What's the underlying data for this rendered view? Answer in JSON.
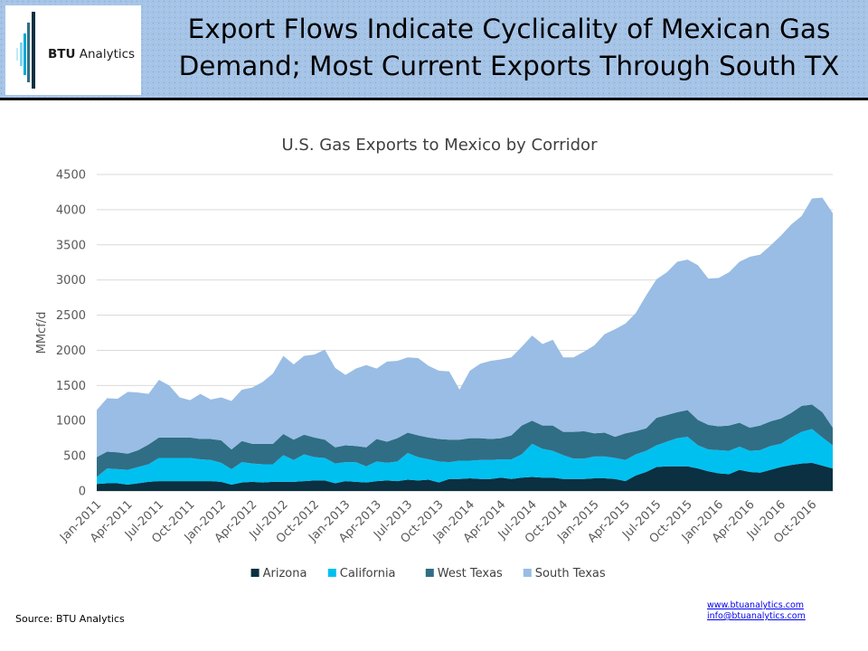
{
  "header": {
    "title_line1": "Export Flows Indicate Cyclicality of Mexican Gas",
    "title_line2": "Demand; Most Current Exports Through South TX",
    "logo_brand": "BTU",
    "logo_suffix": "Analytics"
  },
  "footer": {
    "source": "Source: BTU Analytics",
    "link_web": "www.btuanalytics.com",
    "link_email": "info@btuanalytics.com"
  },
  "colors": {
    "header_bg": "#a6c4e6",
    "arizona": "#0a3041",
    "california": "#00c0f0",
    "west_texas": "#306e85",
    "south_texas": "#99bde4"
  },
  "chart_data": {
    "type": "area",
    "stacked": true,
    "title": "U.S. Gas Exports to Mexico by Corridor",
    "ylabel": "MMcf/d",
    "xlabel": "",
    "ylim": [
      0,
      4500
    ],
    "yticks": [
      0,
      500,
      1000,
      1500,
      2000,
      2500,
      3000,
      3500,
      4000,
      4500
    ],
    "grid": true,
    "legend_position": "bottom",
    "x_start": "Jan-2011",
    "x": [
      "Jan-2011",
      "Feb-2011",
      "Mar-2011",
      "Apr-2011",
      "May-2011",
      "Jun-2011",
      "Jul-2011",
      "Aug-2011",
      "Sep-2011",
      "Oct-2011",
      "Nov-2011",
      "Dec-2011",
      "Jan-2012",
      "Feb-2012",
      "Mar-2012",
      "Apr-2012",
      "May-2012",
      "Jun-2012",
      "Jul-2012",
      "Aug-2012",
      "Sep-2012",
      "Oct-2012",
      "Nov-2012",
      "Dec-2012",
      "Jan-2013",
      "Feb-2013",
      "Mar-2013",
      "Apr-2013",
      "May-2013",
      "Jun-2013",
      "Jul-2013",
      "Aug-2013",
      "Sep-2013",
      "Oct-2013",
      "Nov-2013",
      "Dec-2013",
      "Jan-2014",
      "Feb-2014",
      "Mar-2014",
      "Apr-2014",
      "May-2014",
      "Jun-2014",
      "Jul-2014",
      "Aug-2014",
      "Sep-2014",
      "Oct-2014",
      "Nov-2014",
      "Dec-2014",
      "Jan-2015",
      "Feb-2015",
      "Mar-2015",
      "Apr-2015",
      "May-2015",
      "Jun-2015",
      "Jul-2015",
      "Aug-2015",
      "Sep-2015",
      "Oct-2015",
      "Nov-2015",
      "Dec-2015",
      "Jan-2016",
      "Feb-2016",
      "Mar-2016",
      "Apr-2016",
      "May-2016",
      "Jun-2016",
      "Jul-2016",
      "Aug-2016",
      "Sep-2016",
      "Oct-2016",
      "Nov-2016",
      "Dec-2016"
    ],
    "xtick_labels": [
      "Jan-2011",
      "Apr-2011",
      "Jul-2011",
      "Oct-2011",
      "Jan-2012",
      "Apr-2012",
      "Jul-2012",
      "Oct-2012",
      "Jan-2013",
      "Apr-2013",
      "Jul-2013",
      "Oct-2013",
      "Jan-2014",
      "Apr-2014",
      "Jul-2014",
      "Oct-2014",
      "Jan-2015",
      "Apr-2015",
      "Jul-2015",
      "Oct-2015",
      "Jan-2016",
      "Apr-2016",
      "Jul-2016",
      "Oct-2016"
    ],
    "series": [
      {
        "name": "Arizona",
        "color": "#0a3041",
        "values": [
          100,
          110,
          110,
          90,
          110,
          130,
          140,
          140,
          140,
          140,
          140,
          140,
          130,
          90,
          120,
          130,
          120,
          130,
          130,
          130,
          140,
          150,
          150,
          110,
          140,
          130,
          120,
          140,
          150,
          140,
          160,
          150,
          160,
          120,
          170,
          170,
          180,
          170,
          170,
          190,
          170,
          190,
          200,
          190,
          190,
          170,
          170,
          170,
          180,
          180,
          170,
          140,
          220,
          270,
          340,
          350,
          350,
          350,
          320,
          280,
          250,
          240,
          300,
          270,
          260,
          300,
          340,
          370,
          390,
          400,
          360,
          320
        ]
      },
      {
        "name": "California",
        "color": "#00c0f0",
        "values": [
          100,
          210,
          200,
          210,
          230,
          250,
          330,
          330,
          330,
          330,
          310,
          300,
          270,
          220,
          290,
          260,
          260,
          250,
          380,
          310,
          380,
          330,
          320,
          280,
          270,
          280,
          230,
          280,
          250,
          280,
          380,
          330,
          290,
          300,
          240,
          260,
          250,
          270,
          270,
          260,
          280,
          330,
          470,
          410,
          380,
          340,
          290,
          290,
          310,
          310,
          300,
          300,
          300,
          300,
          310,
          350,
          400,
          420,
          330,
          310,
          330,
          330,
          330,
          300,
          320,
          340,
          330,
          390,
          450,
          480,
          400,
          330
        ]
      },
      {
        "name": "West Texas",
        "color": "#306e85",
        "values": [
          280,
          240,
          240,
          230,
          240,
          280,
          290,
          290,
          290,
          290,
          290,
          300,
          320,
          280,
          300,
          280,
          290,
          290,
          300,
          290,
          280,
          280,
          260,
          230,
          240,
          230,
          270,
          320,
          300,
          330,
          290,
          310,
          310,
          320,
          320,
          300,
          320,
          310,
          300,
          300,
          340,
          410,
          330,
          330,
          360,
          330,
          380,
          390,
          330,
          340,
          300,
          380,
          330,
          320,
          390,
          380,
          370,
          380,
          360,
          350,
          340,
          360,
          340,
          330,
          350,
          350,
          360,
          350,
          370,
          350,
          360,
          250
        ]
      },
      {
        "name": "South Texas",
        "color": "#99bde4",
        "values": [
          670,
          760,
          760,
          880,
          820,
          720,
          820,
          740,
          570,
          530,
          640,
          560,
          610,
          690,
          730,
          800,
          880,
          1000,
          1110,
          1070,
          1120,
          1180,
          1280,
          1130,
          1000,
          1100,
          1170,
          1000,
          1140,
          1100,
          1070,
          1100,
          1020,
          970,
          970,
          710,
          960,
          1060,
          1110,
          1120,
          1110,
          1120,
          1210,
          1160,
          1220,
          1060,
          1060,
          1130,
          1250,
          1400,
          1530,
          1560,
          1680,
          1890,
          1970,
          2030,
          2140,
          2140,
          2200,
          2080,
          2110,
          2180,
          2290,
          2430,
          2430,
          2500,
          2600,
          2680,
          2700,
          2930,
          3050,
          3050
        ]
      }
    ]
  }
}
